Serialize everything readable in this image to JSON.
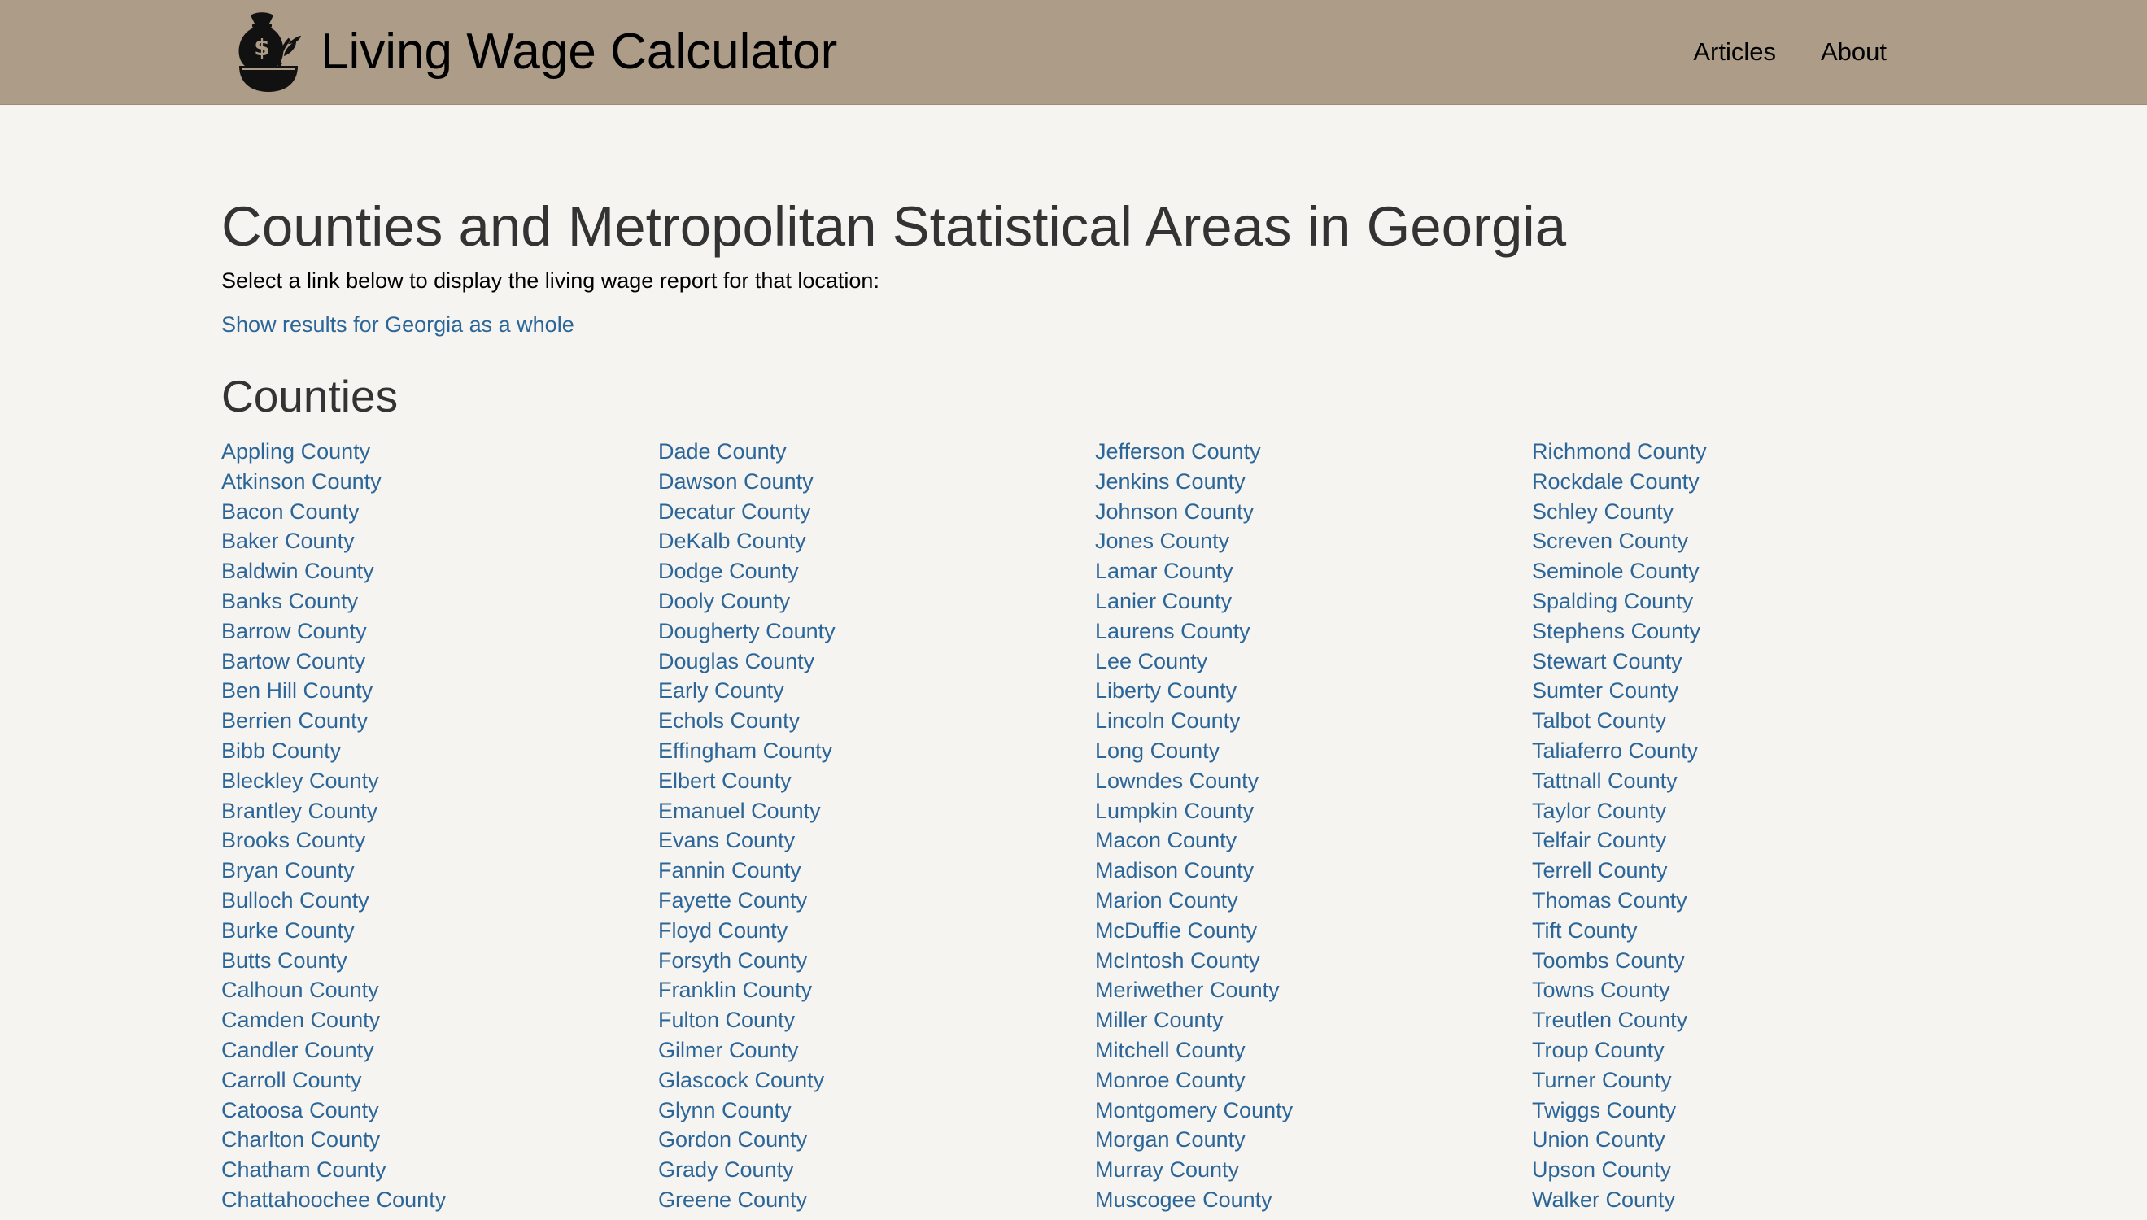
{
  "header": {
    "title": "Living Wage Calculator",
    "nav": [
      {
        "label": "Articles"
      },
      {
        "label": "About"
      }
    ]
  },
  "main": {
    "heading": "Counties and Metropolitan Statistical Areas in Georgia",
    "intro": "Select a link below to display the living wage report for that location:",
    "state_link": "Show results for Georgia as a whole",
    "counties_heading": "Counties",
    "county_columns": [
      [
        "Appling County",
        "Atkinson County",
        "Bacon County",
        "Baker County",
        "Baldwin County",
        "Banks County",
        "Barrow County",
        "Bartow County",
        "Ben Hill County",
        "Berrien County",
        "Bibb County",
        "Bleckley County",
        "Brantley County",
        "Brooks County",
        "Bryan County",
        "Bulloch County",
        "Burke County",
        "Butts County",
        "Calhoun County",
        "Camden County",
        "Candler County",
        "Carroll County",
        "Catoosa County",
        "Charlton County",
        "Chatham County",
        "Chattahoochee County"
      ],
      [
        "Dade County",
        "Dawson County",
        "Decatur County",
        "DeKalb County",
        "Dodge County",
        "Dooly County",
        "Dougherty County",
        "Douglas County",
        "Early County",
        "Echols County",
        "Effingham County",
        "Elbert County",
        "Emanuel County",
        "Evans County",
        "Fannin County",
        "Fayette County",
        "Floyd County",
        "Forsyth County",
        "Franklin County",
        "Fulton County",
        "Gilmer County",
        "Glascock County",
        "Glynn County",
        "Gordon County",
        "Grady County",
        "Greene County"
      ],
      [
        "Jefferson County",
        "Jenkins County",
        "Johnson County",
        "Jones County",
        "Lamar County",
        "Lanier County",
        "Laurens County",
        "Lee County",
        "Liberty County",
        "Lincoln County",
        "Long County",
        "Lowndes County",
        "Lumpkin County",
        "Macon County",
        "Madison County",
        "Marion County",
        "McDuffie County",
        "McIntosh County",
        "Meriwether County",
        "Miller County",
        "Mitchell County",
        "Monroe County",
        "Montgomery County",
        "Morgan County",
        "Murray County",
        "Muscogee County"
      ],
      [
        "Richmond County",
        "Rockdale County",
        "Schley County",
        "Screven County",
        "Seminole County",
        "Spalding County",
        "Stephens County",
        "Stewart County",
        "Sumter County",
        "Talbot County",
        "Taliaferro County",
        "Tattnall County",
        "Taylor County",
        "Telfair County",
        "Terrell County",
        "Thomas County",
        "Tift County",
        "Toombs County",
        "Towns County",
        "Treutlen County",
        "Troup County",
        "Turner County",
        "Twiggs County",
        "Union County",
        "Upson County",
        "Walker County"
      ]
    ]
  },
  "icons": {
    "logo": "money-bag-bowl-icon"
  },
  "colors": {
    "header_bg": "#ac9c88",
    "page_bg": "#f5f4f0",
    "link": "#2c6699",
    "heading": "#333333"
  }
}
